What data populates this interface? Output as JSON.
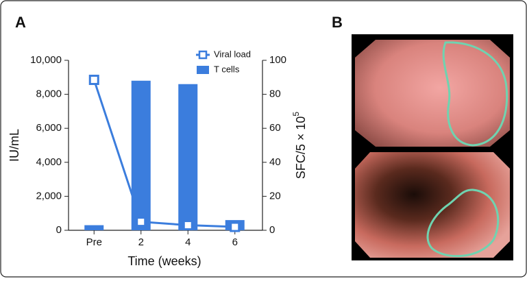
{
  "panels": [
    "A",
    "B"
  ],
  "chart_data": {
    "type": "bar-line",
    "x_label": "Time (weeks)",
    "y_label": "IU/mL",
    "y2_label": {
      "text": "SFC/5 × 10",
      "superscript": "5"
    },
    "categories": [
      "Pre",
      "2",
      "4",
      "6"
    ],
    "series": [
      {
        "name": "Viral load",
        "type": "line",
        "color": "#3b7ddd",
        "values": [
          8850,
          500,
          300,
          200
        ]
      },
      {
        "name": "T cells",
        "type": "bar",
        "axis": "y2",
        "color": "#3b7ddd",
        "values": [
          3,
          88,
          86,
          6
        ]
      }
    ],
    "ylim": [
      0,
      10000
    ],
    "yticks": [
      0,
      {
        "value": 2000,
        "label": "2,000"
      },
      {
        "value": 4000,
        "label": "4,000"
      },
      {
        "value": 6000,
        "label": "6,000"
      },
      {
        "value": 8000,
        "label": "8,000"
      },
      {
        "value": 10000,
        "label": "10,000"
      }
    ],
    "y2lim": [
      0,
      100
    ],
    "y2ticks": [
      0,
      20,
      40,
      60,
      80,
      100
    ],
    "legend": "top-right"
  }
}
